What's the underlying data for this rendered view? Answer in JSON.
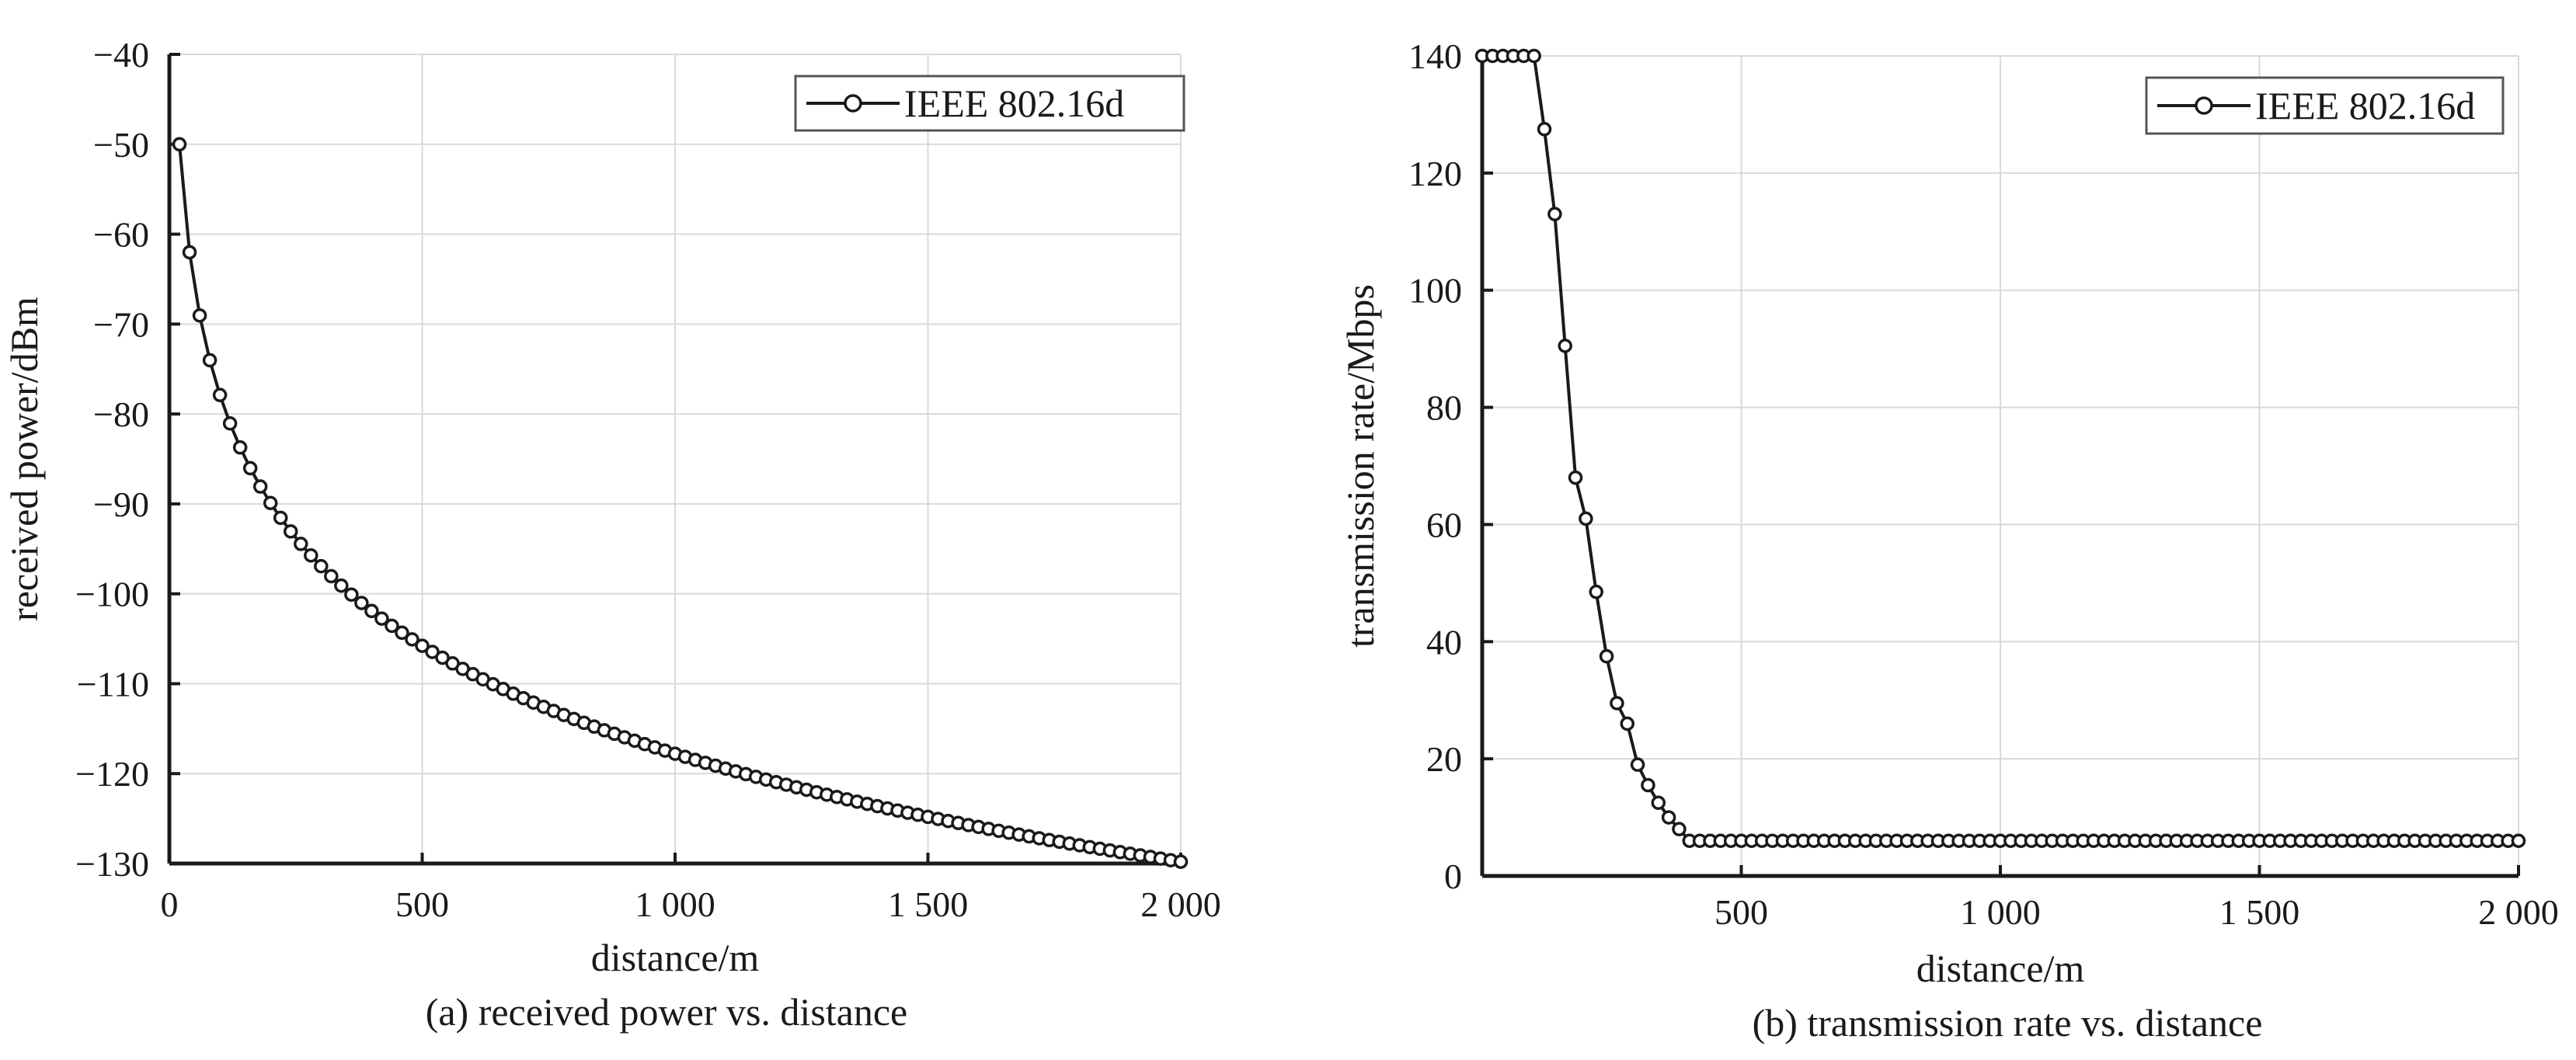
{
  "chart_data": [
    {
      "type": "line",
      "caption": "(a) received power vs. distance",
      "xlabel": "distance/m",
      "ylabel": "received power/dBm",
      "xlim": [
        0,
        2000
      ],
      "ylim": [
        -130,
        -40
      ],
      "xticks": [
        0,
        500,
        1000,
        1500,
        2000
      ],
      "xtick_labels": [
        "0",
        "500",
        "1 000",
        "1 500",
        "2 000"
      ],
      "yticks": [
        -40,
        -50,
        -60,
        -70,
        -80,
        -90,
        -100,
        -110,
        -120,
        -130
      ],
      "ytick_labels": [
        "−40",
        "−50",
        "−60",
        "−70",
        "−80",
        "−90",
        "−100",
        "−110",
        "−120",
        "−130"
      ],
      "grid": true,
      "legend_position": "top-right",
      "series": [
        {
          "name": "IEEE 802.16d",
          "color": "#1a1a1a",
          "marker": "circle",
          "model": {
            "kind": "log-distance",
            "x_start": 20,
            "x_end": 2000,
            "x_step": 20,
            "y_at_start": -50,
            "y_at_end": -129.8
          }
        }
      ]
    },
    {
      "type": "line",
      "caption": "(b) transmission rate vs. distance",
      "xlabel": "distance/m",
      "ylabel": "transmission rate/Mbps",
      "xlim": [
        0,
        2000
      ],
      "ylim": [
        0,
        140
      ],
      "xticks": [
        500,
        1000,
        1500,
        2000
      ],
      "xtick_labels": [
        "500",
        "1 000",
        "1 500",
        "2 000"
      ],
      "yticks": [
        0,
        20,
        40,
        60,
        80,
        100,
        120,
        140
      ],
      "ytick_labels": [
        "0",
        "20",
        "40",
        "60",
        "80",
        "100",
        "120",
        "140"
      ],
      "grid": true,
      "legend_position": "top-right",
      "series": [
        {
          "name": "IEEE 802.16d",
          "color": "#1a1a1a",
          "marker": "circle",
          "points": [
            [
              0,
              140
            ],
            [
              20,
              140
            ],
            [
              40,
              140
            ],
            [
              60,
              140
            ],
            [
              80,
              140
            ],
            [
              100,
              140
            ],
            [
              120,
              127.5
            ],
            [
              140,
              113
            ],
            [
              160,
              90.5
            ],
            [
              180,
              68
            ],
            [
              200,
              61
            ],
            [
              220,
              48.5
            ],
            [
              240,
              37.5
            ],
            [
              260,
              29.5
            ],
            [
              280,
              26
            ],
            [
              300,
              19
            ],
            [
              320,
              15.5
            ],
            [
              340,
              12.5
            ],
            [
              360,
              10
            ],
            [
              380,
              8
            ],
            [
              400,
              6
            ]
          ],
          "tail": {
            "x_start": 420,
            "x_end": 2000,
            "x_step": 20,
            "y": 6
          }
        }
      ]
    }
  ]
}
